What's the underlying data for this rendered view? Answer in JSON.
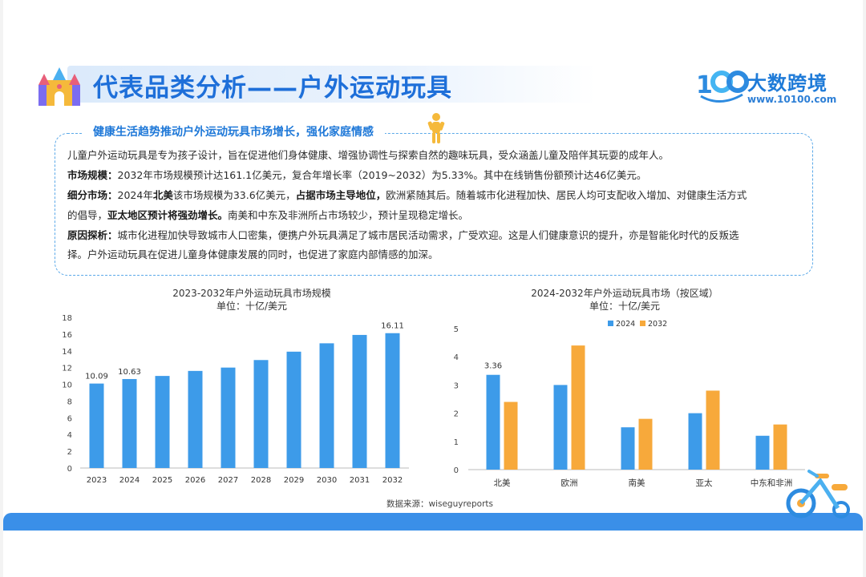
{
  "header": {
    "title": "代表品类分析——户外运动玩具",
    "logo_name": "大数跨境",
    "logo_url": "www.10100.com"
  },
  "summary": {
    "heading": "健康生活趋势推动户外运动玩具市场增长，强化家庭情感",
    "intro": "儿童户外运动玩具是专为孩子设计，旨在促进他们身体健康、增强协调性与探索自然的趣味玩具，受众涵盖儿童及陪伴其玩耍的成年人。",
    "market_label": "市场规模：",
    "market_text": "2032年市场规模预计达161.1亿美元，复合年增长率（2019~2032）为5.33%。其中在线销售份额预计达46亿美元。",
    "segment_label": "细分市场：",
    "segment_text_1": "2024年",
    "segment_bold_1": "北美",
    "segment_text_2": "该市场规模为33.6亿美元，",
    "segment_bold_2": "占据市场主导地位，",
    "segment_text_3": "欧洲紧随其后。随着城市化进程加快、居民人均可支配收入增加、对健康生活方式",
    "segment_text_4": "的倡导，",
    "segment_bold_3": "亚太地区预计将强劲增长。",
    "segment_text_5": "南美和中东及非洲所占市场较少，预计呈现稳定增长。",
    "reason_label": "原因探析：",
    "reason_text_1": "城市化进程加快导致城市人口密集，便携户外玩具满足了城市居民活动需求，广受欢迎。这是人们健康意识的提升，亦是智能化时代的反叛选",
    "reason_text_2": "择。户外运动玩具在促进儿童身体健康发展的同时，也促进了家庭内部情感的加深。"
  },
  "source": "数据来源：wiseguyreports",
  "colors": {
    "blue": "#3d9be9",
    "orange": "#f7a93b",
    "accent": "#1e6fd9"
  },
  "chart_data": [
    {
      "type": "bar",
      "title": "2023-2032年户外运动玩具市场规模",
      "subtitle": "单位：十亿/美元",
      "categories": [
        "2023",
        "2024",
        "2025",
        "2026",
        "2027",
        "2028",
        "2029",
        "2030",
        "2031",
        "2032"
      ],
      "values": [
        10.09,
        10.63,
        11.0,
        11.6,
        12.0,
        12.9,
        13.9,
        14.9,
        15.9,
        16.11
      ],
      "data_labels": [
        "10.09",
        "10.63",
        "",
        "",
        "",
        "",
        "",
        "",
        "",
        "16.11"
      ],
      "ylim": [
        0,
        18
      ],
      "yticks": [
        0,
        2,
        4,
        6,
        8,
        10,
        12,
        14,
        16,
        18
      ],
      "grid": false
    },
    {
      "type": "bar",
      "title": "2024-2032年户外运动玩具市场（按区域）",
      "subtitle": "单位：十亿/美元",
      "categories": [
        "北美",
        "欧洲",
        "南美",
        "亚太",
        "中东和非洲"
      ],
      "series": [
        {
          "name": "2024",
          "values": [
            3.36,
            3.0,
            1.5,
            2.0,
            1.2
          ],
          "data_labels": [
            "3.36",
            "",
            "",
            "",
            ""
          ]
        },
        {
          "name": "2032",
          "values": [
            2.4,
            4.4,
            1.8,
            2.8,
            1.6
          ],
          "data_labels": [
            "",
            "",
            "",
            "",
            ""
          ]
        }
      ],
      "ylim": [
        0,
        5
      ],
      "yticks": [
        0,
        1,
        2,
        3,
        4,
        5
      ],
      "legend": "top-center",
      "grid": false
    }
  ]
}
